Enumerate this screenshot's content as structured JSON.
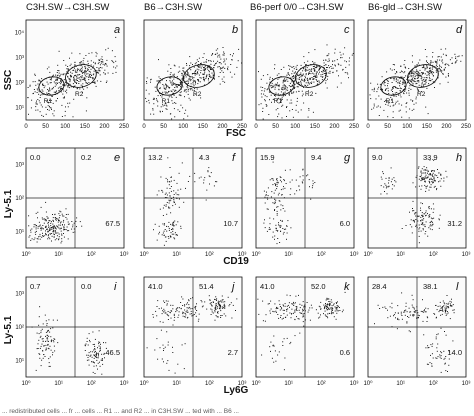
{
  "column_titles": [
    "C3H.SW→C3H.SW",
    "B6→C3H.SW",
    "B6-perf 0/0→C3H.SW",
    "B6-gld→C3H.SW"
  ],
  "caption_fragment": "... redistributed cells ... fr ... cells ... R1 ... and R2 ... in C3H.SW ... ted with ... B6 ...",
  "colors": {
    "ink": "#111111",
    "panel_bg": "#fbfbfb"
  },
  "rows": [
    {
      "type": "scatter",
      "ylabel": "SSC",
      "xlabel": "FSC",
      "x_ticks": [
        "0",
        "50",
        "100",
        "150",
        "200",
        "250"
      ],
      "y_ticks": [
        "10¹",
        "10²",
        "10³",
        "10⁴"
      ],
      "panels": [
        {
          "letter": "a",
          "gates": [
            "R1",
            "R2"
          ]
        },
        {
          "letter": "b",
          "gates": [
            "R1",
            "R2"
          ]
        },
        {
          "letter": "c",
          "gates": [
            "R1",
            "R2"
          ]
        },
        {
          "letter": "d",
          "gates": [
            "R1",
            "R2"
          ]
        }
      ]
    },
    {
      "type": "scatter",
      "ylabel": "Ly-5.1",
      "xlabel": "CD19",
      "x_ticks": [
        "10⁰",
        "10¹",
        "10²",
        "10³"
      ],
      "y_ticks": [
        "10¹",
        "10²",
        "10³"
      ],
      "panels": [
        {
          "letter": "e",
          "quadrants": {
            "upper_left": "0.0",
            "upper_right": "0.2",
            "lower_right": "67.5"
          }
        },
        {
          "letter": "f",
          "quadrants": {
            "upper_left": "13.2",
            "upper_right": "4.3",
            "lower_right": "10.7"
          }
        },
        {
          "letter": "g",
          "quadrants": {
            "upper_left": "15.9",
            "upper_right": "9.4",
            "lower_right": "6.0"
          }
        },
        {
          "letter": "h",
          "quadrants": {
            "upper_left": "9.0",
            "upper_right": "33.9",
            "lower_right": "31.2"
          }
        }
      ]
    },
    {
      "type": "scatter",
      "ylabel": "Ly-5.1",
      "xlabel": "Ly6G",
      "x_ticks": [
        "10⁰",
        "10¹",
        "10²",
        "10³"
      ],
      "y_ticks": [
        "10¹",
        "10²",
        "10³"
      ],
      "panels": [
        {
          "letter": "i",
          "quadrants": {
            "upper_left": "0.7",
            "upper_right": "0.0",
            "lower_right": "46.5"
          }
        },
        {
          "letter": "j",
          "quadrants": {
            "upper_left": "41.0",
            "upper_right": "51.4",
            "lower_right": "2.7"
          }
        },
        {
          "letter": "k",
          "quadrants": {
            "upper_left": "41.0",
            "upper_right": "52.0",
            "lower_right": "0.6"
          }
        },
        {
          "letter": "l",
          "quadrants": {
            "upper_left": "28.4",
            "upper_right": "38.1",
            "lower_right": "14.0"
          }
        }
      ]
    }
  ],
  "chart_data": [
    {
      "type": "scatter",
      "title": "C3H.SW→C3H.SW",
      "panel": "a",
      "xlabel": "FSC",
      "ylabel": "SSC",
      "xlim": [
        0,
        250
      ],
      "gates": [
        "R1",
        "R2"
      ]
    },
    {
      "type": "scatter",
      "title": "B6→C3H.SW",
      "panel": "b",
      "xlabel": "FSC",
      "ylabel": "SSC",
      "xlim": [
        0,
        250
      ],
      "gates": [
        "R1",
        "R2"
      ]
    },
    {
      "type": "scatter",
      "title": "B6-perf 0/0→C3H.SW",
      "panel": "c",
      "xlabel": "FSC",
      "ylabel": "SSC",
      "xlim": [
        0,
        250
      ],
      "gates": [
        "R1",
        "R2"
      ]
    },
    {
      "type": "scatter",
      "title": "B6-gld→C3H.SW",
      "panel": "d",
      "xlabel": "FSC",
      "ylabel": "SSC",
      "xlim": [
        0,
        250
      ],
      "gates": [
        "R1",
        "R2"
      ]
    },
    {
      "type": "scatter",
      "panel": "e",
      "xlabel": "CD19",
      "ylabel": "Ly-5.1",
      "quadrant_percent": {
        "upper_left": 0.0,
        "upper_right": 0.2,
        "lower_right": 67.5
      }
    },
    {
      "type": "scatter",
      "panel": "f",
      "xlabel": "CD19",
      "ylabel": "Ly-5.1",
      "quadrant_percent": {
        "upper_left": 13.2,
        "upper_right": 4.3,
        "lower_right": 10.7
      }
    },
    {
      "type": "scatter",
      "panel": "g",
      "xlabel": "CD19",
      "ylabel": "Ly-5.1",
      "quadrant_percent": {
        "upper_left": 15.9,
        "upper_right": 9.4,
        "lower_right": 6.0
      }
    },
    {
      "type": "scatter",
      "panel": "h",
      "xlabel": "CD19",
      "ylabel": "Ly-5.1",
      "quadrant_percent": {
        "upper_left": 9.0,
        "upper_right": 33.9,
        "lower_right": 31.2
      }
    },
    {
      "type": "scatter",
      "panel": "i",
      "xlabel": "Ly6G",
      "ylabel": "Ly-5.1",
      "quadrant_percent": {
        "upper_left": 0.7,
        "upper_right": 0.0,
        "lower_right": 46.5
      }
    },
    {
      "type": "scatter",
      "panel": "j",
      "xlabel": "Ly6G",
      "ylabel": "Ly-5.1",
      "quadrant_percent": {
        "upper_left": 41.0,
        "upper_right": 51.4,
        "lower_right": 2.7
      }
    },
    {
      "type": "scatter",
      "panel": "k",
      "xlabel": "Ly6G",
      "ylabel": "Ly-5.1",
      "quadrant_percent": {
        "upper_left": 41.0,
        "upper_right": 52.0,
        "lower_right": 0.6
      }
    },
    {
      "type": "scatter",
      "panel": "l",
      "xlabel": "Ly6G",
      "ylabel": "Ly-5.1",
      "quadrant_percent": {
        "upper_left": 28.4,
        "upper_right": 38.1,
        "lower_right": 14.0
      }
    }
  ]
}
